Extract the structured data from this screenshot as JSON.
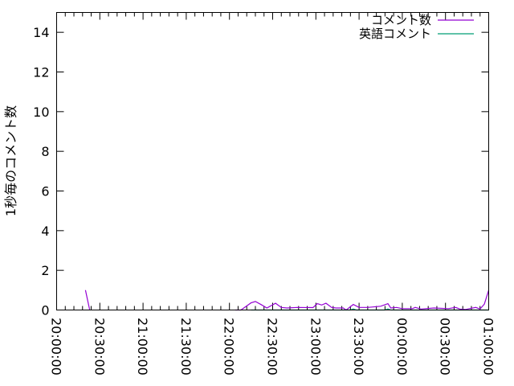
{
  "chart_data": {
    "type": "line",
    "title": "",
    "xlabel": "",
    "ylabel": "1秒毎のコメント数",
    "xlim": [
      "20:00:00",
      "01:00:00"
    ],
    "ylim": [
      0,
      15
    ],
    "x_tick_labels": [
      "20:00:00",
      "20:30:00",
      "21:00:00",
      "21:30:00",
      "22:00:00",
      "22:30:00",
      "23:00:00",
      "23:30:00",
      "00:00:00",
      "00:30:00",
      "01:00:00"
    ],
    "y_tick_labels": [
      "0",
      "2",
      "4",
      "6",
      "8",
      "10",
      "12",
      "14"
    ],
    "grid": false,
    "legend_position": "top-right",
    "series": [
      {
        "name": "コメント数",
        "color": "#9400d3",
        "points": [
          [
            "20:20",
            1.0
          ],
          [
            "20:23",
            0
          ],
          null,
          [
            "22:04",
            0
          ],
          [
            "22:08",
            0
          ],
          [
            "22:15",
            0.36
          ],
          [
            "22:18",
            0.43
          ],
          [
            "22:22",
            0.27
          ],
          [
            "22:26",
            0.1
          ],
          [
            "22:32",
            0.34
          ],
          [
            "22:36",
            0.13
          ],
          [
            "22:40",
            0.1
          ],
          [
            "22:47",
            0.13
          ],
          [
            "22:58",
            0.12
          ],
          [
            "23:01",
            0.32
          ],
          [
            "23:04",
            0.25
          ],
          [
            "23:07",
            0.34
          ],
          [
            "23:11",
            0.13
          ],
          [
            "23:14",
            0.1
          ],
          [
            "23:19",
            0.1
          ],
          [
            "23:21",
            0
          ],
          [
            "23:26",
            0.28
          ],
          [
            "23:30",
            0.13
          ],
          [
            "23:36",
            0.13
          ],
          [
            "23:45",
            0.19
          ],
          [
            "23:50",
            0.32
          ],
          [
            "23:52",
            0.1
          ],
          [
            "23:56",
            0.13
          ],
          [
            "00:00",
            0.07
          ],
          [
            "00:07",
            0.07
          ],
          [
            "00:09",
            0.13
          ],
          [
            "00:13",
            0.05
          ],
          [
            "00:22",
            0.1
          ],
          [
            "00:32",
            0.07
          ],
          [
            "00:37",
            0.13
          ],
          [
            "00:40",
            0.05
          ],
          [
            "00:44",
            0.03
          ],
          [
            "00:51",
            0.13
          ],
          [
            "00:54",
            0.05
          ],
          [
            "00:57",
            0.3
          ],
          [
            "01:00",
            1.0
          ]
        ]
      },
      {
        "name": "英語コメント",
        "color": "#009e73",
        "points": [
          [
            "22:15",
            0
          ],
          [
            "23:24",
            0
          ],
          [
            "23:26",
            0.05
          ],
          [
            "23:28",
            0
          ],
          [
            "23:48",
            0
          ],
          [
            "23:50",
            0.05
          ],
          [
            "23:52",
            0
          ],
          [
            "01:00",
            0
          ]
        ]
      }
    ]
  }
}
